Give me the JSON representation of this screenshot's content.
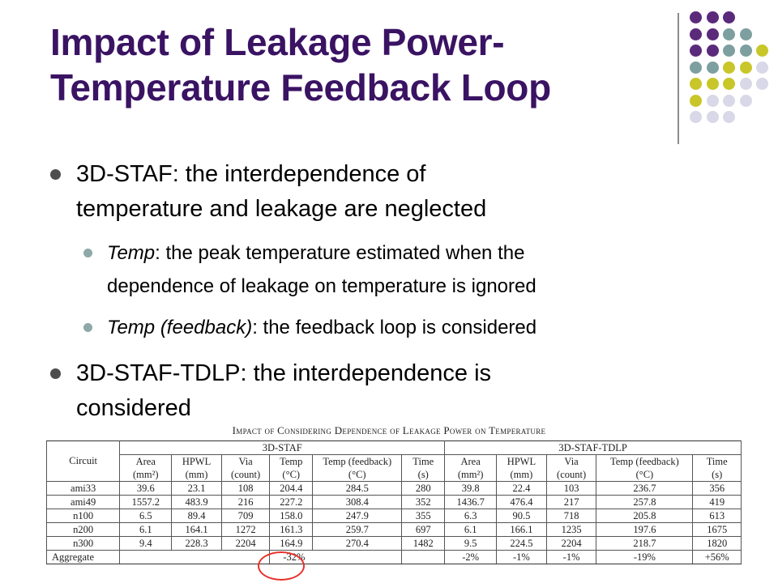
{
  "title_line1": "Impact of Leakage Power-",
  "title_line2": "Temperature Feedback Loop",
  "bullets": [
    {
      "line1": "3D-STAF: the interdependence of",
      "line2": "temperature and leakage are neglected",
      "sub": [
        {
          "term": "Temp",
          "line1_rest": ": the peak temperature estimated when the",
          "line2": "dependence of leakage on temperature is ignored"
        },
        {
          "term": "Temp (feedback)",
          "line1_rest": ": the feedback loop is considered"
        }
      ]
    },
    {
      "line1": "3D-STAF-TDLP: the interdependence is",
      "line2": "considered"
    }
  ],
  "dot_colors": {
    "purple": "#5b2a7a",
    "teal": "#7e9f9f",
    "yellow": "#c9c62a",
    "lavender": "#d8d8e8"
  },
  "table": {
    "caption": "Impact of Considering Dependence of Leakage Power on Temperature",
    "group1": "3D-STAF",
    "group2": "3D-STAF-TDLP",
    "circuit_header": "Circuit",
    "col_names": [
      "Area",
      "HPWL",
      "Via",
      "Temp",
      "Temp (feedback)",
      "Time",
      "Area",
      "HPWL",
      "Via",
      "Temp (feedback)",
      "Time"
    ],
    "col_units": [
      "(mm²)",
      "(mm)",
      "(count)",
      "(°C)",
      "(°C)",
      "(s)",
      "(mm²)",
      "(mm)",
      "(count)",
      "(°C)",
      "(s)"
    ],
    "rows": [
      [
        "ami33",
        "39.6",
        "23.1",
        "108",
        "204.4",
        "284.5",
        "280",
        "39.8",
        "22.4",
        "103",
        "236.7",
        "356"
      ],
      [
        "ami49",
        "1557.2",
        "483.9",
        "216",
        "227.2",
        "308.4",
        "352",
        "1436.7",
        "476.4",
        "217",
        "257.8",
        "419"
      ],
      [
        "n100",
        "6.5",
        "89.4",
        "709",
        "158.0",
        "247.9",
        "355",
        "6.3",
        "90.5",
        "718",
        "205.8",
        "613"
      ],
      [
        "n200",
        "6.1",
        "164.1",
        "1272",
        "161.3",
        "259.7",
        "697",
        "6.1",
        "166.1",
        "1235",
        "197.6",
        "1675"
      ],
      [
        "n300",
        "9.4",
        "228.3",
        "2204",
        "164.9",
        "270.4",
        "1482",
        "9.5",
        "224.5",
        "2204",
        "218.7",
        "1820"
      ]
    ],
    "aggregate": {
      "label": "Aggregate",
      "staf_temp": "-32%",
      "tdlp_area": "-2%",
      "tdlp_hpwl": "-1%",
      "tdlp_via": "-1%",
      "tdlp_temp": "-19%",
      "tdlp_time": "+56%"
    }
  }
}
